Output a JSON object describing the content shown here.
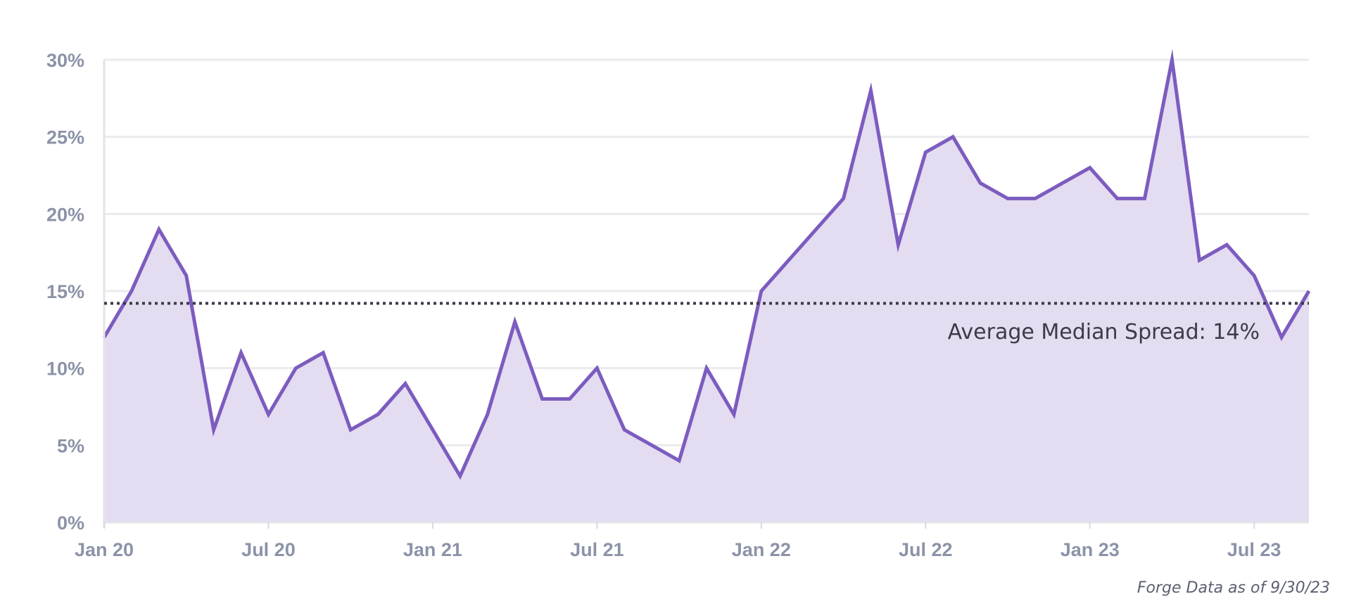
{
  "chart_data": {
    "type": "area",
    "title": "",
    "xlabel": "",
    "ylabel": "",
    "ylim": [
      0,
      30
    ],
    "grid": true,
    "y_ticks": [
      {
        "value": 0,
        "label": "0%"
      },
      {
        "value": 5,
        "label": "5%"
      },
      {
        "value": 10,
        "label": "10%"
      },
      {
        "value": 15,
        "label": "15%"
      },
      {
        "value": 20,
        "label": "20%"
      },
      {
        "value": 25,
        "label": "25%"
      },
      {
        "value": 30,
        "label": "30%"
      }
    ],
    "x_ticks": [
      {
        "index": 0,
        "label": "Jan 20"
      },
      {
        "index": 6,
        "label": "Jul 20"
      },
      {
        "index": 12,
        "label": "Jan 21"
      },
      {
        "index": 18,
        "label": "Jul 21"
      },
      {
        "index": 24,
        "label": "Jan 22"
      },
      {
        "index": 30,
        "label": "Jul 22"
      },
      {
        "index": 36,
        "label": "Jan 23"
      },
      {
        "index": 42,
        "label": "Jul 23"
      }
    ],
    "series": [
      {
        "name": "Median Spread",
        "color": "#7c5cbf",
        "fill": "#e4dcf0",
        "values": [
          12,
          15,
          19,
          16,
          6,
          11,
          7,
          10,
          11,
          6,
          7,
          9,
          6,
          3,
          7,
          13,
          8,
          8,
          10,
          6,
          5,
          4,
          10,
          7,
          15,
          17,
          19,
          21,
          28,
          18,
          24,
          25,
          22,
          21,
          21,
          22,
          23,
          21,
          21,
          30,
          17,
          18,
          16,
          12,
          15
        ]
      }
    ],
    "reference_line": {
      "value": 14.2,
      "style": "dotted",
      "color": "#3b3b4a",
      "label": "Average Median Spread: 14%"
    }
  },
  "footnote": "Forge Data as of 9/30/23"
}
